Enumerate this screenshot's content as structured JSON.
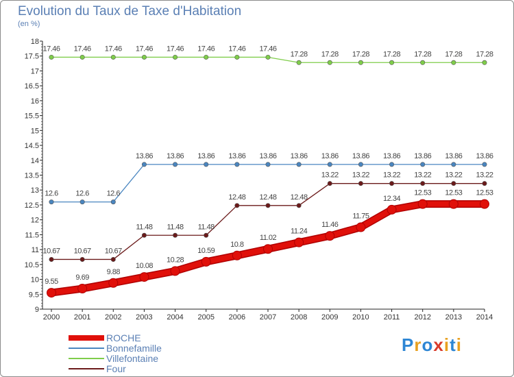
{
  "title": "Evolution du Taux de Taxe d'Habitation",
  "subtitle": "(en %)",
  "logo": {
    "text": "Proxiti",
    "letters": [
      "P",
      "r",
      "o",
      "x",
      "i",
      "t",
      "i"
    ],
    "colors": [
      "#2e86d4",
      "#e8a020",
      "#2e86d4",
      "#d93a2a",
      "#e8a020",
      "#2e86d4",
      "#e8a020"
    ]
  },
  "chart_data": {
    "type": "line",
    "x": [
      "2000",
      "2001",
      "2002",
      "2003",
      "2004",
      "2005",
      "2006",
      "2007",
      "2008",
      "2009",
      "2010",
      "2011",
      "2012",
      "2013",
      "2014"
    ],
    "ylim": [
      9,
      18
    ],
    "yticks": [
      "9",
      "9.5",
      "10",
      "10.5",
      "11",
      "11.5",
      "12",
      "12.5",
      "13",
      "13.5",
      "14",
      "14.5",
      "15",
      "15.5",
      "16",
      "16.5",
      "17",
      "17.5",
      "18"
    ],
    "grid": false,
    "legend": "bottom-left",
    "series": [
      {
        "name": "ROCHE",
        "color": "#e0100a",
        "values": [
          9.55,
          9.69,
          9.88,
          10.08,
          10.28,
          10.59,
          10.8,
          11.02,
          11.24,
          11.46,
          11.75,
          12.34,
          12.53,
          12.53,
          12.53
        ],
        "labels": [
          "9.55",
          "9.69",
          "9.88",
          "10.08",
          "10.28",
          "10.59",
          "10.8",
          "11.02",
          "11.24",
          "11.46",
          "11.75",
          "12.34",
          "12.53",
          "12.53",
          "12.53"
        ]
      },
      {
        "name": "Bonnefamille",
        "color": "#4a86c0",
        "values": [
          12.6,
          12.6,
          12.6,
          13.86,
          13.86,
          13.86,
          13.86,
          13.86,
          13.86,
          13.86,
          13.86,
          13.86,
          13.86,
          13.86,
          13.86
        ],
        "labels": [
          "12.6",
          "12.6",
          "12.6",
          "13.86",
          "13.86",
          "13.86",
          "13.86",
          "13.86",
          "13.86",
          "13.86",
          "13.86",
          "13.86",
          "13.86",
          "13.86",
          "13.86"
        ]
      },
      {
        "name": "Villefontaine",
        "color": "#7fcd4a",
        "values": [
          17.46,
          17.46,
          17.46,
          17.46,
          17.46,
          17.46,
          17.46,
          17.46,
          17.28,
          17.28,
          17.28,
          17.28,
          17.28,
          17.28,
          17.28
        ],
        "labels": [
          "17.46",
          "17.46",
          "17.46",
          "17.46",
          "17.46",
          "17.46",
          "17.46",
          "17.46",
          "17.28",
          "17.28",
          "17.28",
          "17.28",
          "17.28",
          "17.28",
          "17.28"
        ]
      },
      {
        "name": "Four",
        "color": "#6b1a1a",
        "values": [
          10.67,
          10.67,
          10.67,
          11.48,
          11.48,
          11.48,
          12.48,
          12.48,
          12.48,
          13.22,
          13.22,
          13.22,
          13.22,
          13.22,
          13.22
        ],
        "labels": [
          "10.67",
          "10.67",
          "10.67",
          "11.48",
          "11.48",
          "11.48",
          "12.48",
          "12.48",
          "12.48",
          "13.22",
          "13.22",
          "13.22",
          "13.22",
          "13.22",
          "13.22"
        ]
      }
    ]
  }
}
